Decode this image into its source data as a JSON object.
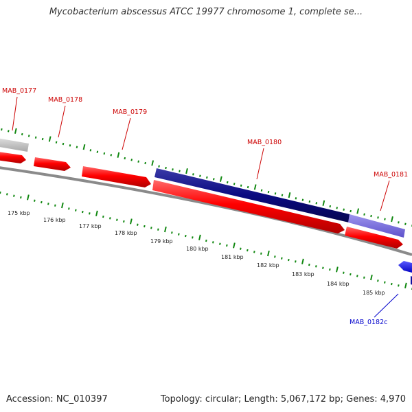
{
  "title": "Mycobacterium abscessus ATCC 19977 chromosome 1, complete se...",
  "footer": {
    "accession": "Accession: NC_010397",
    "summary": "Topology: circular; Length: 5,067,172 bp; Genes: 4,970"
  },
  "colors": {
    "forward_gene": "#ff0000",
    "selected_gene": "#0a0a80",
    "neighbor_gene": "#7a6ee0",
    "gray_gene": "#c8c8c8",
    "reverse_gene": "#0000ff",
    "tick": "#118811",
    "backbone": "#808080",
    "forward_label": "#cc0000",
    "reverse_label": "#0000cc"
  },
  "scale": {
    "tick_labels": [
      "175 kbp",
      "176 kbp",
      "177 kbp",
      "178 kbp",
      "179 kbp",
      "180 kbp",
      "181 kbp",
      "182 kbp",
      "183 kbp",
      "184 kbp",
      "185 kbp"
    ]
  },
  "gene_labels": [
    {
      "text": "MAB_0177",
      "strand": "forward"
    },
    {
      "text": "MAB_0178",
      "strand": "forward"
    },
    {
      "text": "MAB_0179",
      "strand": "forward"
    },
    {
      "text": "MAB_0180",
      "strand": "forward"
    },
    {
      "text": "MAB_0181",
      "strand": "forward"
    },
    {
      "text": "MAB_0182c",
      "strand": "reverse"
    }
  ]
}
